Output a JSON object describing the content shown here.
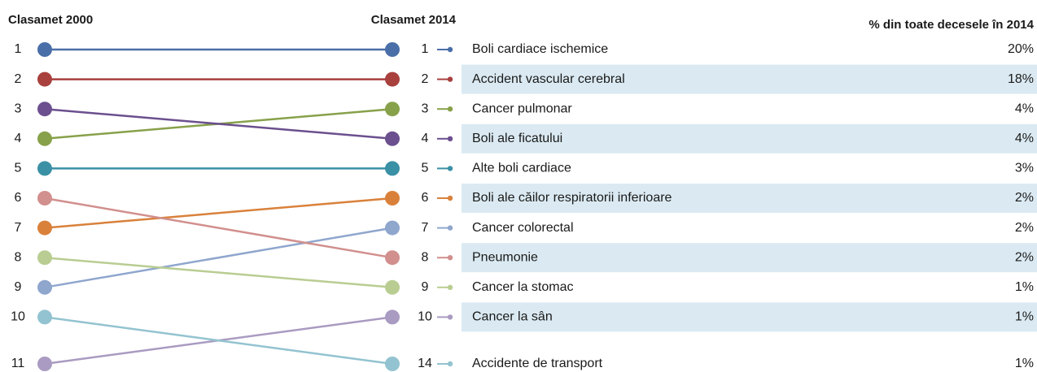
{
  "chart_data": {
    "type": "slope",
    "title_left": "Clasamet 2000",
    "title_right": "Clasamet 2014",
    "value_title": "% din toate decesele în 2014",
    "categories": [
      "Boli cardiace ischemice",
      "Accident vascular cerebral",
      "Cancer pulmonar",
      "Boli ale ficatului",
      "Alte boli cardiace",
      "Boli ale căilor respiratorii inferioare",
      "Cancer colorectal",
      "Pneumonie",
      "Cancer la stomac",
      "Cancer la sân",
      "Accidente de transport"
    ],
    "rank_2000": [
      1,
      2,
      4,
      3,
      5,
      7,
      9,
      6,
      8,
      11,
      10
    ],
    "rank_2014": [
      1,
      2,
      3,
      4,
      5,
      6,
      7,
      8,
      9,
      10,
      14
    ],
    "values": [
      20,
      18,
      4,
      4,
      3,
      2,
      2,
      2,
      1,
      1,
      1
    ],
    "value_labels": [
      "20%",
      "18%",
      "4%",
      "4%",
      "3%",
      "2%",
      "2%",
      "2%",
      "1%",
      "1%",
      "1%"
    ],
    "colors": [
      "#4a6fa8",
      "#a8403d",
      "#87a14a",
      "#6b4f8e",
      "#3a90a4",
      "#d9813b",
      "#8fa6cd",
      "#d18f8d",
      "#b9cd92",
      "#a99bc1",
      "#93c3d0"
    ]
  }
}
